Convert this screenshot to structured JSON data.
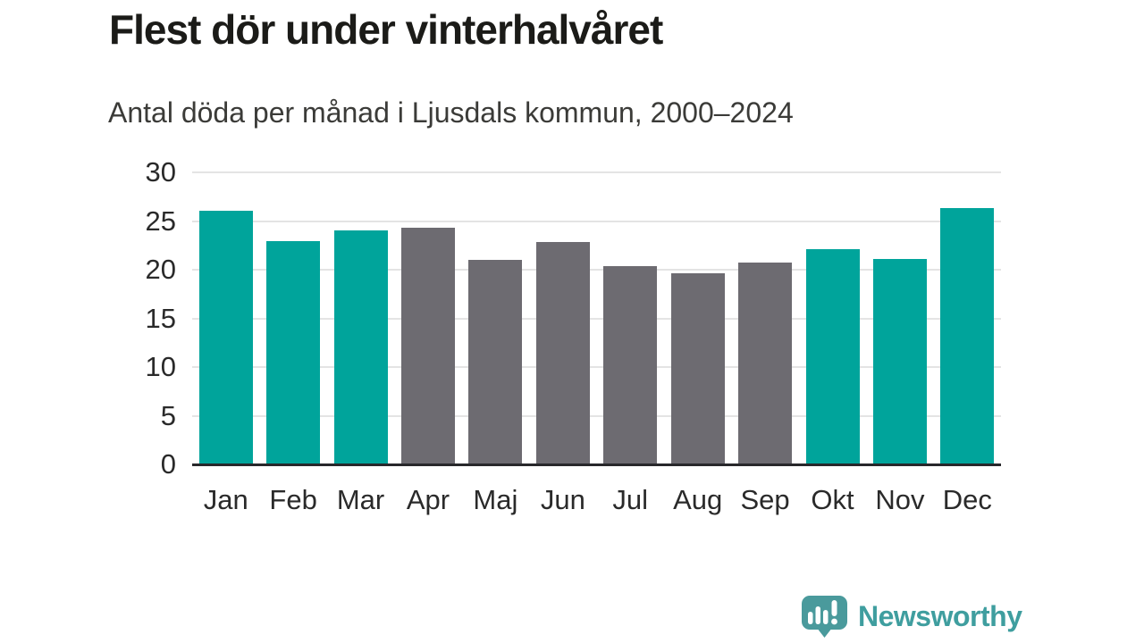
{
  "title": "Flest dör under vinterhalvåret",
  "subtitle": "Antal döda per månad i Ljusdals kommun, 2000–2024",
  "branding": {
    "logo_text": "Newsworthy",
    "logo_icon": "newsworthy-speech-bubble-chart-icon"
  },
  "colors": {
    "winter_bar": "#00a49b",
    "summer_bar": "#6d6b71",
    "gridline": "#e4e4e4",
    "axis_line": "#28282b",
    "title_text": "#1b1b18",
    "subtitle_text": "#3b3b38",
    "axis_text": "#2a2a2a",
    "logo_text": "#3f9e9f",
    "logo_icon_fill": "#4a9a9c"
  },
  "chart_data": {
    "type": "bar",
    "title": "Flest dör under vinterhalvåret",
    "subtitle": "Antal döda per månad i Ljusdals kommun, 2000–2024",
    "categories": [
      "Jan",
      "Feb",
      "Mar",
      "Apr",
      "Maj",
      "Jun",
      "Jul",
      "Aug",
      "Sep",
      "Okt",
      "Nov",
      "Dec"
    ],
    "values": [
      26.1,
      22.9,
      24.0,
      24.3,
      21.0,
      22.8,
      20.4,
      19.6,
      20.7,
      22.1,
      21.1,
      26.3
    ],
    "bar_groups": [
      "winter",
      "winter",
      "winter",
      "summer",
      "summer",
      "summer",
      "summer",
      "summer",
      "summer",
      "winter",
      "winter",
      "winter"
    ],
    "xlabel": "",
    "ylabel": "",
    "ylim": [
      0,
      30
    ],
    "yticks": [
      0,
      5,
      10,
      15,
      20,
      25,
      30
    ],
    "grid": true,
    "legend": false,
    "highlight_meaning": "teal = winter half-year months, gray = summer half-year months"
  }
}
